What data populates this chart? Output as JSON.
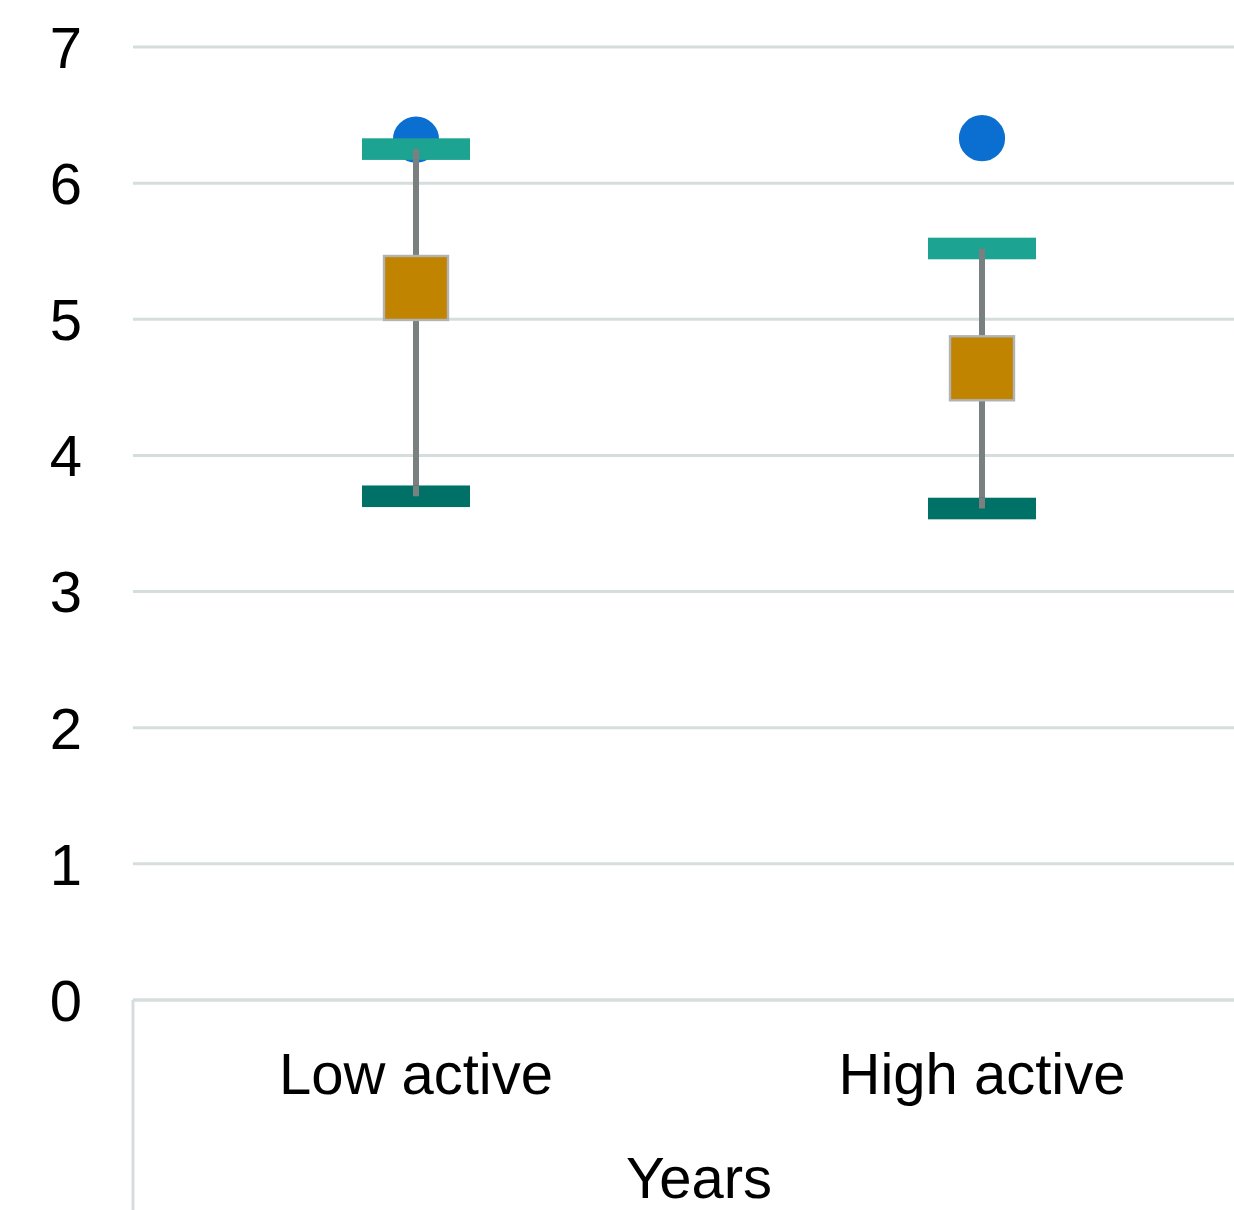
{
  "chart_data": {
    "type": "scatter",
    "xlabel": "Years",
    "categories": [
      "Low active",
      "High active"
    ],
    "ylim": [
      0,
      7
    ],
    "yticks": [
      0,
      1,
      2,
      3,
      4,
      5,
      6,
      7
    ],
    "grid": "y",
    "series": [
      {
        "color": "#c08400",
        "marker": "square",
        "values": [
          5.23,
          4.64
        ],
        "errors": [
          [
            3.7,
            6.25
          ],
          [
            3.61,
            5.52
          ]
        ]
      },
      {
        "color": "#0a6fd0",
        "marker": "circle",
        "values": [
          6.32,
          6.33
        ]
      }
    ]
  }
}
